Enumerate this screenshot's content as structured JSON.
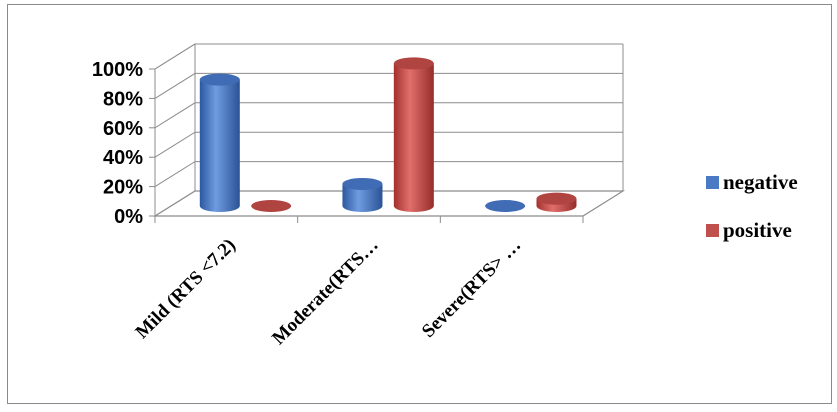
{
  "chart_data": {
    "type": "bar",
    "title": "",
    "xlabel": "",
    "ylabel": "",
    "categories": [
      "Mild (RTS <7.2)",
      "Moderate(RTS…",
      "Severe(RTS> …"
    ],
    "series": [
      {
        "name": "negative",
        "values": [
          0.86,
          0.15,
          0.0
        ],
        "color": "#4a7ac4"
      },
      {
        "name": "positive",
        "values": [
          0.0,
          0.97,
          0.05
        ],
        "color": "#c0504d"
      }
    ],
    "ylim": [
      0,
      1
    ],
    "ytick_labels": [
      "0%",
      "20%",
      "40%",
      "60%",
      "80%",
      "100%"
    ],
    "grid": true,
    "style": "3d-cylinder",
    "legend_position": "right"
  }
}
